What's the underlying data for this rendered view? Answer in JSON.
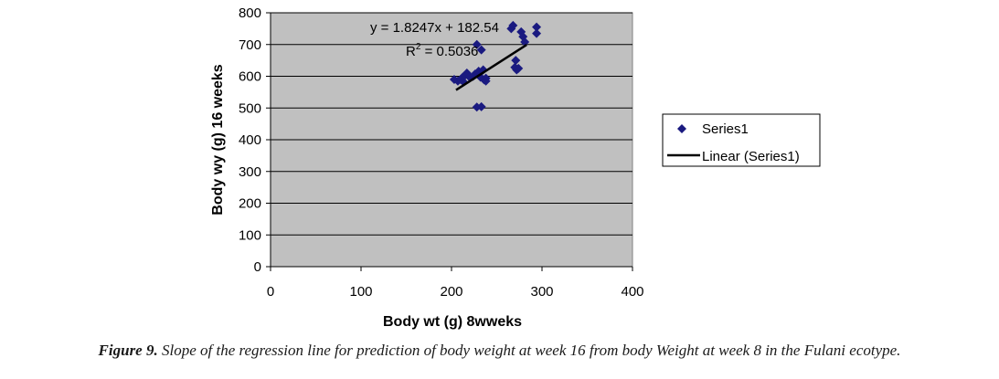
{
  "chart_data": {
    "type": "scatter",
    "xlabel": "Body wt (g) 8wweks",
    "ylabel": "Body wy (g) 16 weeks",
    "xlim": [
      0,
      400
    ],
    "ylim": [
      0,
      800
    ],
    "xticks": [
      "0",
      "100",
      "200",
      "300",
      "400"
    ],
    "yticks": [
      "0",
      "100",
      "200",
      "300",
      "400",
      "500",
      "600",
      "700",
      "800"
    ],
    "grid": "horizontal",
    "legend_position": "right",
    "series": [
      {
        "name": "Series1",
        "marker": "diamond",
        "color": "#1a1a80",
        "points": [
          [
            203,
            590
          ],
          [
            207,
            585
          ],
          [
            210,
            590
          ],
          [
            212,
            596
          ],
          [
            213,
            583
          ],
          [
            215,
            603
          ],
          [
            217,
            610
          ],
          [
            220,
            597
          ],
          [
            224,
            600
          ],
          [
            226,
            607
          ],
          [
            228,
            700
          ],
          [
            228,
            503
          ],
          [
            230,
            616
          ],
          [
            231,
            610
          ],
          [
            232,
            597
          ],
          [
            233,
            683
          ],
          [
            233,
            504
          ],
          [
            235,
            620
          ],
          [
            236,
            589
          ],
          [
            238,
            594
          ],
          [
            238,
            585
          ],
          [
            266,
            750
          ],
          [
            268,
            760
          ],
          [
            270,
            628
          ],
          [
            271,
            650
          ],
          [
            272,
            620
          ],
          [
            274,
            625
          ],
          [
            277,
            740
          ],
          [
            279,
            725
          ],
          [
            281,
            708
          ],
          [
            294,
            735
          ],
          [
            294,
            755
          ]
        ]
      },
      {
        "name": "Linear (Series1)",
        "type": "line",
        "color": "#000000",
        "x": [
          205,
          283
        ],
        "y": [
          556.6,
          699.0
        ]
      }
    ],
    "annotations": {
      "equation": "y = 1.8247x + 182.54",
      "r2_prefix": "R",
      "r2_sup": "2",
      "r2_suffix": " = 0.5036"
    }
  },
  "legend": {
    "series1": "Series1",
    "linear": "Linear (Series1)"
  },
  "caption": {
    "label": "Figure 9.",
    "text": " Slope of the regression line for prediction of body weight at week 16 from  body Weight at week 8 in the Fulani ecotype."
  },
  "colors": {
    "plot_bg": "#c0c0c0",
    "marker": "#1a1a80",
    "trendline": "#000000"
  }
}
